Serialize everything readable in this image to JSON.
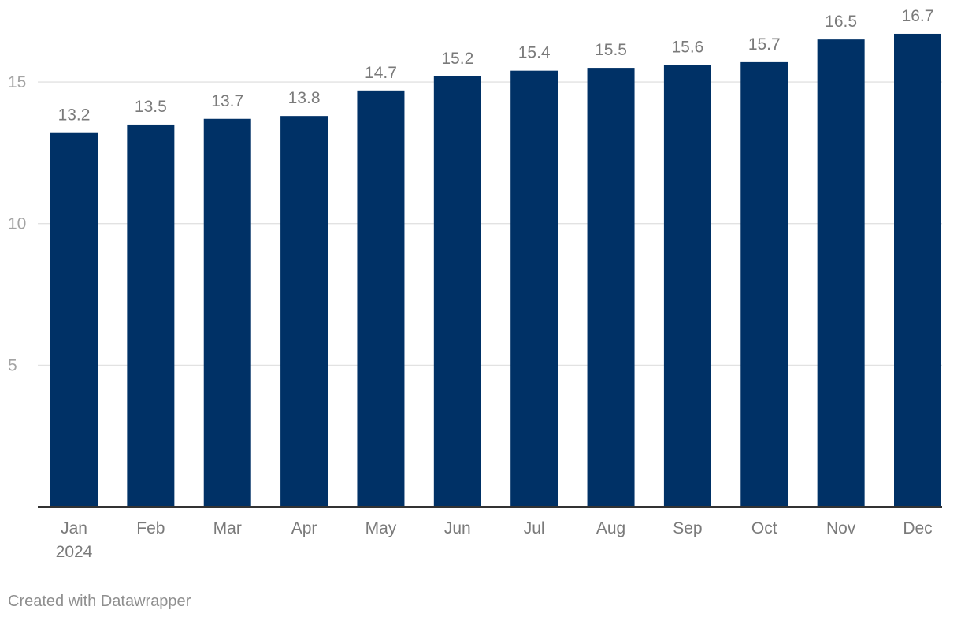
{
  "chart_data": {
    "type": "bar",
    "title": "",
    "xlabel": "",
    "ylabel": "",
    "categories": [
      "Jan",
      "Feb",
      "Mar",
      "Apr",
      "May",
      "Jun",
      "Jul",
      "Aug",
      "Sep",
      "Oct",
      "Nov",
      "Dec"
    ],
    "category_sublabels": [
      "2024",
      "",
      "",
      "",
      "",
      "",
      "",
      "",
      "",
      "",
      "",
      ""
    ],
    "values": [
      13.2,
      13.5,
      13.7,
      13.8,
      14.7,
      15.2,
      15.4,
      15.5,
      15.6,
      15.7,
      16.5,
      16.7
    ],
    "value_labels": [
      "13.2",
      "13.5",
      "13.7",
      "13.8",
      "14.7",
      "15.2",
      "15.4",
      "15.5",
      "15.6",
      "15.7",
      "16.5",
      "16.7"
    ],
    "ylim": [
      0,
      17
    ],
    "yticks": [
      5,
      10,
      15
    ],
    "ytick_labels": [
      "5",
      "10",
      "15"
    ],
    "grid": true,
    "bar_color": "#003166"
  },
  "footer": {
    "credit": "Created with Datawrapper"
  }
}
